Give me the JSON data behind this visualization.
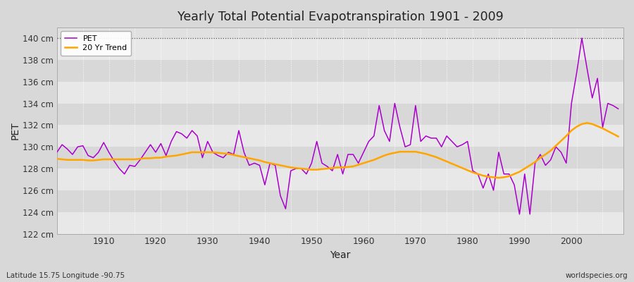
{
  "title": "Yearly Total Potential Evapotranspiration 1901 - 2009",
  "xlabel": "Year",
  "ylabel": "PET",
  "subtitle_left": "Latitude 15.75 Longitude -90.75",
  "subtitle_right": "worldspecies.org",
  "pet_color": "#AA00CC",
  "trend_color": "#FFA500",
  "bg_color": "#D8D8D8",
  "plot_bg": "#E0E0E0",
  "band_light": "#E8E8E8",
  "band_dark": "#D8D8D8",
  "ylim_min": 122,
  "ylim_max": 141,
  "yticks": [
    122,
    124,
    126,
    128,
    130,
    132,
    134,
    136,
    138,
    140
  ],
  "ytick_labels": [
    "122 cm",
    "124 cm",
    "126 cm",
    "128 cm",
    "130 cm",
    "132 cm",
    "134 cm",
    "136 cm",
    "138 cm",
    "140 cm"
  ],
  "xmin": 1901,
  "xmax": 2010,
  "xticks": [
    1910,
    1920,
    1930,
    1940,
    1950,
    1960,
    1970,
    1980,
    1990,
    2000
  ],
  "years": [
    1901,
    1902,
    1903,
    1904,
    1905,
    1906,
    1907,
    1908,
    1909,
    1910,
    1911,
    1912,
    1913,
    1914,
    1915,
    1916,
    1917,
    1918,
    1919,
    1920,
    1921,
    1922,
    1923,
    1924,
    1925,
    1926,
    1927,
    1928,
    1929,
    1930,
    1931,
    1932,
    1933,
    1934,
    1935,
    1936,
    1937,
    1938,
    1939,
    1940,
    1941,
    1942,
    1943,
    1944,
    1945,
    1946,
    1947,
    1948,
    1949,
    1950,
    1951,
    1952,
    1953,
    1954,
    1955,
    1956,
    1957,
    1958,
    1959,
    1960,
    1961,
    1962,
    1963,
    1964,
    1965,
    1966,
    1967,
    1968,
    1969,
    1970,
    1971,
    1972,
    1973,
    1974,
    1975,
    1976,
    1977,
    1978,
    1979,
    1980,
    1981,
    1982,
    1983,
    1984,
    1985,
    1986,
    1987,
    1988,
    1989,
    1990,
    1991,
    1992,
    1993,
    1994,
    1995,
    1996,
    1997,
    1998,
    1999,
    2000,
    2001,
    2002,
    2003,
    2004,
    2005,
    2006,
    2007,
    2008,
    2009
  ],
  "pet": [
    129.5,
    130.2,
    129.8,
    129.3,
    130.0,
    130.1,
    129.2,
    129.0,
    129.5,
    130.4,
    129.5,
    128.7,
    128.0,
    127.5,
    128.3,
    128.2,
    128.8,
    129.5,
    130.2,
    129.5,
    130.3,
    129.2,
    130.5,
    131.4,
    131.2,
    130.8,
    131.5,
    131.0,
    129.0,
    130.5,
    129.5,
    129.2,
    129.0,
    129.5,
    129.3,
    131.5,
    129.5,
    128.3,
    128.5,
    128.3,
    126.5,
    128.5,
    128.3,
    125.5,
    124.3,
    127.8,
    128.0,
    128.0,
    127.5,
    128.5,
    130.5,
    128.5,
    128.2,
    127.8,
    129.3,
    127.5,
    129.3,
    129.3,
    128.5,
    129.5,
    130.5,
    131.0,
    133.8,
    131.5,
    130.5,
    134.0,
    131.8,
    130.0,
    130.2,
    133.8,
    130.5,
    131.0,
    130.8,
    130.8,
    130.0,
    131.0,
    130.5,
    130.0,
    130.2,
    130.5,
    127.8,
    127.5,
    126.2,
    127.5,
    126.0,
    129.5,
    127.5,
    127.5,
    126.5,
    123.8,
    127.5,
    123.8,
    128.5,
    129.3,
    128.3,
    128.8,
    130.0,
    129.5,
    128.5,
    134.0,
    136.8,
    140.0,
    137.2,
    134.5,
    136.3,
    131.8,
    134.0,
    133.8,
    133.5
  ],
  "trend": [
    128.9,
    128.85,
    128.8,
    128.8,
    128.8,
    128.8,
    128.75,
    128.75,
    128.8,
    128.85,
    128.85,
    128.85,
    128.85,
    128.85,
    128.85,
    128.85,
    128.9,
    128.95,
    128.95,
    129.0,
    129.0,
    129.1,
    129.15,
    129.2,
    129.3,
    129.4,
    129.5,
    129.5,
    129.5,
    129.5,
    129.5,
    129.45,
    129.4,
    129.35,
    129.25,
    129.15,
    129.05,
    128.95,
    128.85,
    128.75,
    128.6,
    128.5,
    128.4,
    128.3,
    128.2,
    128.1,
    128.05,
    128.0,
    127.95,
    127.9,
    127.9,
    127.95,
    128.0,
    128.05,
    128.1,
    128.1,
    128.15,
    128.2,
    128.35,
    128.5,
    128.65,
    128.8,
    129.0,
    129.2,
    129.35,
    129.45,
    129.55,
    129.55,
    129.55,
    129.55,
    129.45,
    129.35,
    129.2,
    129.05,
    128.85,
    128.65,
    128.45,
    128.25,
    128.05,
    127.85,
    127.65,
    127.5,
    127.35,
    127.25,
    127.2,
    127.15,
    127.2,
    127.3,
    127.5,
    127.7,
    128.0,
    128.3,
    128.6,
    129.0,
    129.3,
    129.65,
    130.1,
    130.55,
    131.0,
    131.5,
    131.85,
    132.1,
    132.2,
    132.1,
    131.9,
    131.7,
    131.45,
    131.2,
    130.95
  ]
}
